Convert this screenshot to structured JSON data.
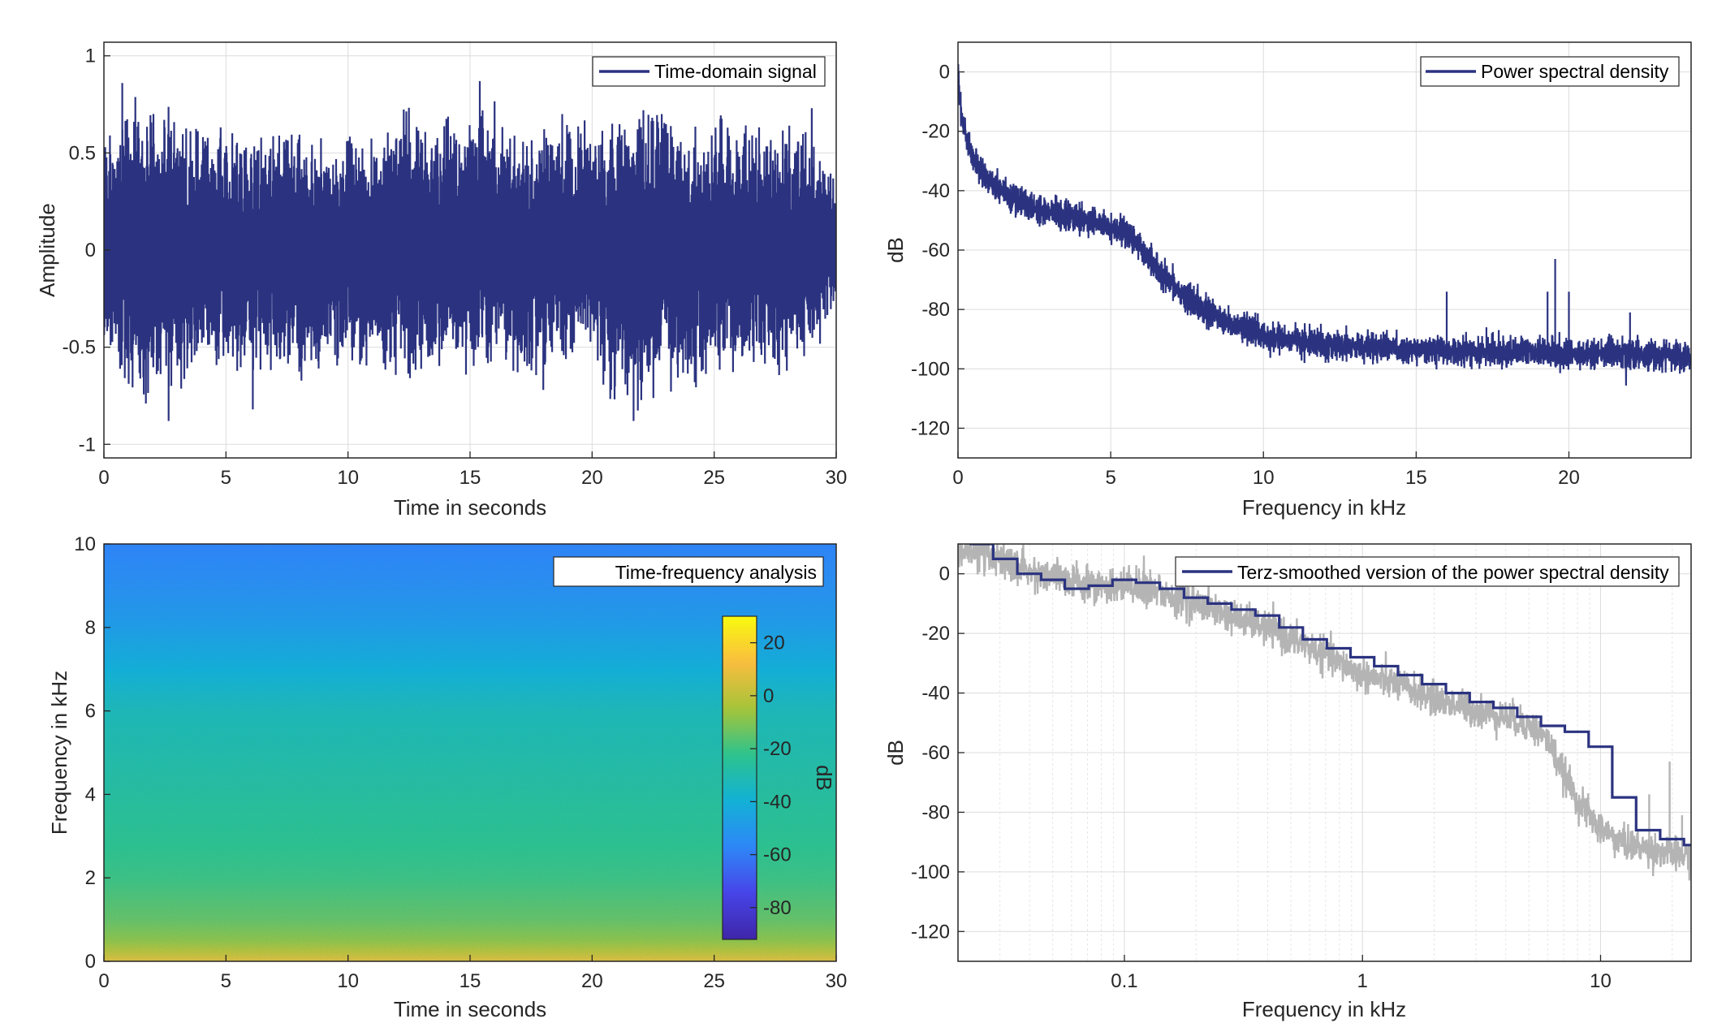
{
  "chart_data": [
    {
      "type": "line",
      "xlabel": "Time in seconds",
      "ylabel": "Amplitude",
      "xlim": [
        0,
        30
      ],
      "ylim": [
        -1.07,
        1.07
      ],
      "xticks": [
        0,
        5,
        10,
        15,
        20,
        25,
        30
      ],
      "xtick_labels": [
        "0",
        "5",
        "10",
        "15",
        "20",
        "25",
        "30"
      ],
      "yticks": [
        -1,
        -0.5,
        0,
        0.5,
        1
      ],
      "ytick_labels": [
        "-1",
        "-0.5",
        "0",
        "0.5",
        "1"
      ],
      "grid": true,
      "legend_position": "top-right",
      "series": [
        {
          "name": "Time-domain signal",
          "color": "#2b3380",
          "description": "dense noise signal, envelope mostly within about ±0.45, occasional peaks near ±0.85",
          "x": [
            0.0,
            1.2,
            2.6,
            4.1,
            5.5,
            7.0,
            8.4,
            9.9,
            11.3,
            12.8,
            14.2,
            15.7,
            17.1,
            18.6,
            20.0,
            21.5,
            22.9,
            24.4,
            25.8,
            27.3,
            28.7,
            30.0
          ],
          "upper_envelope": [
            0.62,
            0.86,
            0.77,
            0.7,
            0.64,
            0.66,
            0.62,
            0.69,
            0.66,
            0.79,
            0.71,
            0.81,
            0.64,
            0.77,
            0.68,
            0.85,
            0.76,
            0.64,
            0.82,
            0.63,
            0.73,
            0.44
          ],
          "lower_envelope": [
            -0.51,
            -0.82,
            -0.86,
            -0.65,
            -0.71,
            -0.64,
            -0.75,
            -0.62,
            -0.68,
            -0.75,
            -0.7,
            -0.65,
            -0.73,
            -0.62,
            -0.72,
            -0.88,
            -0.81,
            -0.74,
            -0.66,
            -0.71,
            -0.65,
            -0.4
          ]
        }
      ],
      "peaks": [
        {
          "x": 0.75,
          "y": 0.86
        },
        {
          "x": 2.65,
          "y": -0.88
        },
        {
          "x": 6.1,
          "y": -0.82
        },
        {
          "x": 15.4,
          "y": 0.87
        },
        {
          "x": 18.0,
          "y": -0.72
        },
        {
          "x": 21.7,
          "y": -0.88
        },
        {
          "x": 22.1,
          "y": 0.72
        },
        {
          "x": 29.0,
          "y": 0.73
        }
      ]
    },
    {
      "type": "line",
      "xlabel": "Frequency in kHz",
      "ylabel": "dB",
      "xlim": [
        0,
        24
      ],
      "ylim": [
        -130,
        10
      ],
      "xticks": [
        0,
        5,
        10,
        15,
        20
      ],
      "xtick_labels": [
        "0",
        "5",
        "10",
        "15",
        "20"
      ],
      "yticks": [
        -120,
        -100,
        -80,
        -60,
        -40,
        -20,
        0
      ],
      "ytick_labels": [
        "-120",
        "-100",
        "-80",
        "-60",
        "-40",
        "-20",
        "0"
      ],
      "grid": true,
      "legend_position": "top-right",
      "series": [
        {
          "name": "Power spectral density",
          "color": "#2b3380",
          "x": [
            0,
            0.05,
            0.15,
            0.3,
            0.5,
            0.8,
            1.2,
            1.7,
            2.3,
            3.0,
            3.8,
            4.6,
            5.3,
            5.8,
            6.2,
            6.6,
            7.0,
            7.5,
            8.0,
            8.7,
            9.5,
            10.5,
            12.0,
            14.0,
            16.0,
            18.0,
            20.0,
            22.0,
            24.0
          ],
          "y": [
            2,
            -8,
            -16,
            -23,
            -29,
            -34,
            -38,
            -42,
            -45,
            -47,
            -49,
            -51,
            -53,
            -56,
            -62,
            -67,
            -71,
            -76,
            -80,
            -84,
            -87,
            -90,
            -92,
            -93,
            -94,
            -94,
            -95,
            -95,
            -96
          ],
          "spread_db": 3
        }
      ],
      "spikes": [
        {
          "x": 16.0,
          "y": -74
        },
        {
          "x": 17.3,
          "y": -86
        },
        {
          "x": 19.3,
          "y": -74
        },
        {
          "x": 19.55,
          "y": -63
        },
        {
          "x": 20.0,
          "y": -74
        },
        {
          "x": 22.0,
          "y": -81
        }
      ]
    },
    {
      "type": "heatmap",
      "title": "Time-frequency analysis",
      "xlabel": "Time in seconds",
      "ylabel": "Frequency in kHz",
      "xlim": [
        0,
        30
      ],
      "ylim": [
        0,
        10
      ],
      "xticks": [
        0,
        5,
        10,
        15,
        20,
        25,
        30
      ],
      "xtick_labels": [
        "0",
        "5",
        "10",
        "15",
        "20",
        "25",
        "30"
      ],
      "yticks": [
        0,
        2,
        4,
        6,
        8,
        10
      ],
      "ytick_labels": [
        "0",
        "2",
        "4",
        "6",
        "8",
        "10"
      ],
      "colorbar": {
        "label": "dB",
        "range": [
          -92,
          30
        ],
        "ticks": [
          20,
          0,
          -20,
          -40,
          -60,
          -80
        ],
        "tick_labels": [
          "20",
          "0",
          "-20",
          "-40",
          "-60",
          "-80"
        ],
        "colormap": [
          "#3e26a8",
          "#4744e8",
          "#2e87f7",
          "#12b1d6",
          "#2dc38d",
          "#a6c439",
          "#f9bd3f",
          "#f9fb0e"
        ]
      },
      "frequency_profile": {
        "freq_khz": [
          0,
          0.2,
          0.5,
          1.0,
          2.0,
          3.0,
          4.0,
          5.0,
          6.0,
          6.5,
          7.0,
          8.0,
          9.0,
          10.0
        ],
        "level_db": [
          8,
          0,
          -8,
          -14,
          -20,
          -23,
          -26,
          -29,
          -32,
          -36,
          -40,
          -48,
          -54,
          -58
        ]
      }
    },
    {
      "type": "line",
      "xlabel": "Frequency in kHz",
      "ylabel": "dB",
      "xscale": "log",
      "xlim": [
        0.02,
        24
      ],
      "ylim": [
        -130,
        10
      ],
      "xticks": [
        0.1,
        1,
        10
      ],
      "xtick_labels": [
        "0.1",
        "1",
        "10"
      ],
      "yticks": [
        -120,
        -100,
        -80,
        -60,
        -40,
        -20,
        0
      ],
      "ytick_labels": [
        "-120",
        "-100",
        "-80",
        "-60",
        "-40",
        "-20",
        "0"
      ],
      "grid": true,
      "legend_position": "top-right",
      "series": [
        {
          "name": "Terz-smoothed version of the power spectral density",
          "color": "#2b3380",
          "type": "step",
          "band_edges": [
            0.0224,
            0.0281,
            0.0355,
            0.0447,
            0.0562,
            0.0708,
            0.0891,
            0.112,
            0.141,
            0.178,
            0.224,
            0.282,
            0.355,
            0.447,
            0.562,
            0.708,
            0.891,
            1.12,
            1.41,
            1.78,
            2.24,
            2.82,
            3.55,
            4.47,
            5.62,
            7.08,
            8.91,
            11.2,
            14.1,
            17.8,
            22.4,
            24
          ],
          "values": [
            10,
            5,
            0,
            -2,
            -5,
            -4,
            -2,
            -3,
            -5,
            -8,
            -10,
            -12,
            -14,
            -18,
            -22,
            -25,
            -28,
            -31,
            -34,
            -37,
            -40,
            -43,
            -45,
            -48,
            -51,
            -53,
            -58,
            -75,
            -86,
            -89,
            -91,
            -92
          ]
        },
        {
          "name": "",
          "color": "#b4b4b4",
          "description": "raw power spectral density on log frequency axis",
          "x": [
            0.02,
            0.03,
            0.04,
            0.06,
            0.08,
            0.1,
            0.15,
            0.2,
            0.3,
            0.5,
            0.8,
            1.0,
            1.5,
            2.0,
            3.0,
            4.0,
            5.0,
            5.5,
            6.0,
            6.5,
            7.0,
            8.0,
            9.5,
            12.0,
            15.0,
            20.0,
            24.0
          ],
          "y": [
            8,
            4,
            0,
            -3,
            -4,
            -4,
            -7,
            -10,
            -15,
            -22,
            -30,
            -34,
            -38,
            -42,
            -46,
            -48,
            -51,
            -53,
            -56,
            -62,
            -67,
            -76,
            -84,
            -90,
            -92,
            -94,
            -95
          ],
          "spread_db": 4
        }
      ],
      "spikes": [
        {
          "x": 16.0,
          "y": -74
        },
        {
          "x": 19.5,
          "y": -63
        },
        {
          "x": 22.0,
          "y": -81
        }
      ]
    }
  ]
}
